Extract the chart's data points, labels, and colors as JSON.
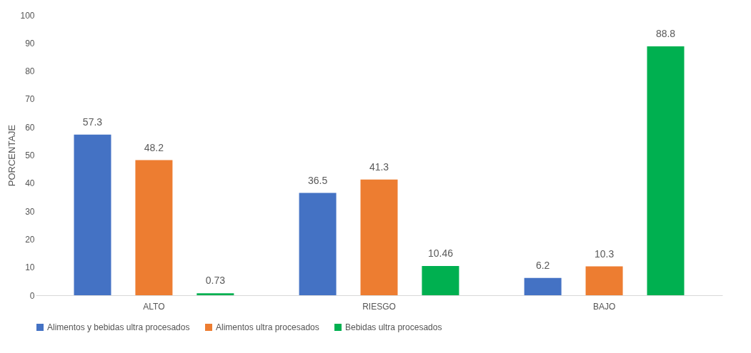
{
  "chart_data": {
    "type": "bar",
    "ylabel": "PORCENTAJE",
    "categories": [
      "ALTO",
      "RIESGO",
      "BAJO"
    ],
    "series": [
      {
        "name": "Alimentos y bebidas ultra procesados",
        "color": "#4472c4",
        "values": [
          57.3,
          36.5,
          6.2
        ]
      },
      {
        "name": "Alimentos ultra procesados",
        "color": "#ed7d31",
        "values": [
          48.2,
          41.3,
          10.3
        ]
      },
      {
        "name": "Bebidas ultra procesados",
        "color": "#00b050",
        "values": [
          0.73,
          10.46,
          88.8
        ]
      }
    ],
    "ylim": [
      0,
      100
    ],
    "yticks": [
      0,
      10,
      20,
      30,
      40,
      50,
      60,
      70,
      80,
      90,
      100
    ],
    "grid": false,
    "legend": "bottom",
    "data_labels": true
  }
}
